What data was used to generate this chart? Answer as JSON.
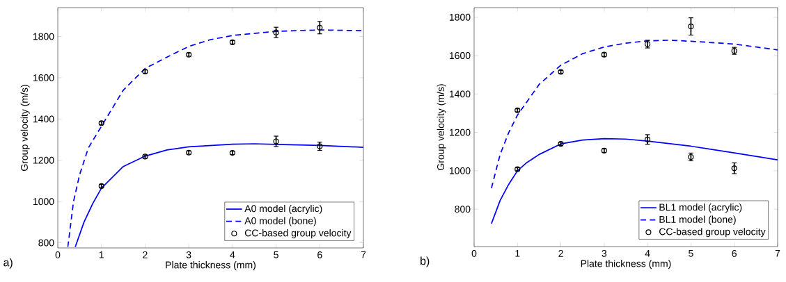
{
  "chart_data": [
    {
      "type": "line",
      "xlabel": "Plate thickness (mm)",
      "ylabel": "Group velocity (m/s)",
      "annotations": [
        "a)"
      ],
      "xlim": [
        0,
        7
      ],
      "ylim": [
        775,
        1940
      ],
      "xticks": [
        0,
        1,
        2,
        3,
        4,
        5,
        6,
        7
      ],
      "yticks": [
        800,
        1000,
        1200,
        1400,
        1600,
        1800
      ],
      "legend": "bottom right",
      "series": [
        {
          "name": "A0 model (acrylic)",
          "color": "#0000ff",
          "line_style": "solid",
          "marker": "none",
          "x": [
            0.4,
            0.6,
            0.8,
            1,
            1.5,
            2,
            2.5,
            3,
            4,
            4.5,
            5,
            6,
            7
          ],
          "values": [
            780,
            900,
            990,
            1065,
            1170,
            1220,
            1250,
            1265,
            1278,
            1280,
            1277,
            1272,
            1263
          ]
        },
        {
          "name": "A0 model (bone)",
          "color": "#0000ff",
          "line_style": "dashed",
          "marker": "none",
          "x": [
            0.23,
            0.36,
            0.5,
            0.7,
            1,
            1.5,
            2,
            2.5,
            3,
            3.5,
            4,
            5,
            6,
            7
          ],
          "values": [
            780,
            1000,
            1130,
            1260,
            1365,
            1540,
            1645,
            1700,
            1752,
            1785,
            1805,
            1825,
            1832,
            1828
          ]
        },
        {
          "name": "CC-based group velocity",
          "type": "scatter",
          "color": "#000000",
          "marker": "circle",
          "x": [
            1,
            2,
            3,
            4,
            5,
            6,
            1,
            2,
            3,
            4,
            5,
            6
          ],
          "values": [
            1380,
            1630,
            1712,
            1772,
            1820,
            1843,
            1075,
            1218,
            1237,
            1236,
            1292,
            1268
          ],
          "errors": [
            8,
            8,
            8,
            8,
            25,
            30,
            8,
            8,
            8,
            8,
            25,
            20
          ]
        }
      ]
    },
    {
      "type": "line",
      "xlabel": "Plate thickness (mm)",
      "ylabel": "Group velocity (m/s)",
      "annotations": [
        "b)"
      ],
      "xlim": [
        0,
        7
      ],
      "ylim": [
        605,
        1850
      ],
      "xticks": [
        0,
        1,
        2,
        3,
        4,
        5,
        6,
        7
      ],
      "yticks": [
        800,
        1000,
        1200,
        1400,
        1600,
        1800
      ],
      "legend": "bottom right",
      "series": [
        {
          "name": "BL1 model (acrylic)",
          "color": "#0000ff",
          "line_style": "solid",
          "marker": "none",
          "x": [
            0.4,
            0.6,
            0.8,
            1,
            1.2,
            1.5,
            2,
            2.5,
            3,
            3.5,
            4,
            5,
            6,
            7
          ],
          "values": [
            725,
            845,
            930,
            1000,
            1040,
            1085,
            1140,
            1160,
            1167,
            1165,
            1155,
            1128,
            1093,
            1057
          ]
        },
        {
          "name": "BL1 model (bone)",
          "color": "#0000ff",
          "line_style": "dashed",
          "marker": "none",
          "x": [
            0.4,
            0.6,
            0.8,
            1,
            1.5,
            2,
            2.5,
            3,
            3.5,
            4,
            4.5,
            5,
            6,
            7
          ],
          "values": [
            910,
            1085,
            1200,
            1290,
            1450,
            1550,
            1610,
            1645,
            1665,
            1677,
            1680,
            1675,
            1660,
            1630
          ]
        },
        {
          "name": "CC-based group velocity",
          "type": "scatter",
          "color": "#000000",
          "marker": "circle",
          "x": [
            1,
            2,
            3,
            4,
            5,
            6,
            1,
            2,
            3,
            4,
            5,
            6
          ],
          "values": [
            1315,
            1515,
            1605,
            1660,
            1752,
            1625,
            1008,
            1140,
            1105,
            1163,
            1072,
            1013
          ],
          "errors": [
            8,
            8,
            10,
            20,
            45,
            18,
            8,
            8,
            10,
            25,
            20,
            28
          ]
        }
      ]
    }
  ]
}
